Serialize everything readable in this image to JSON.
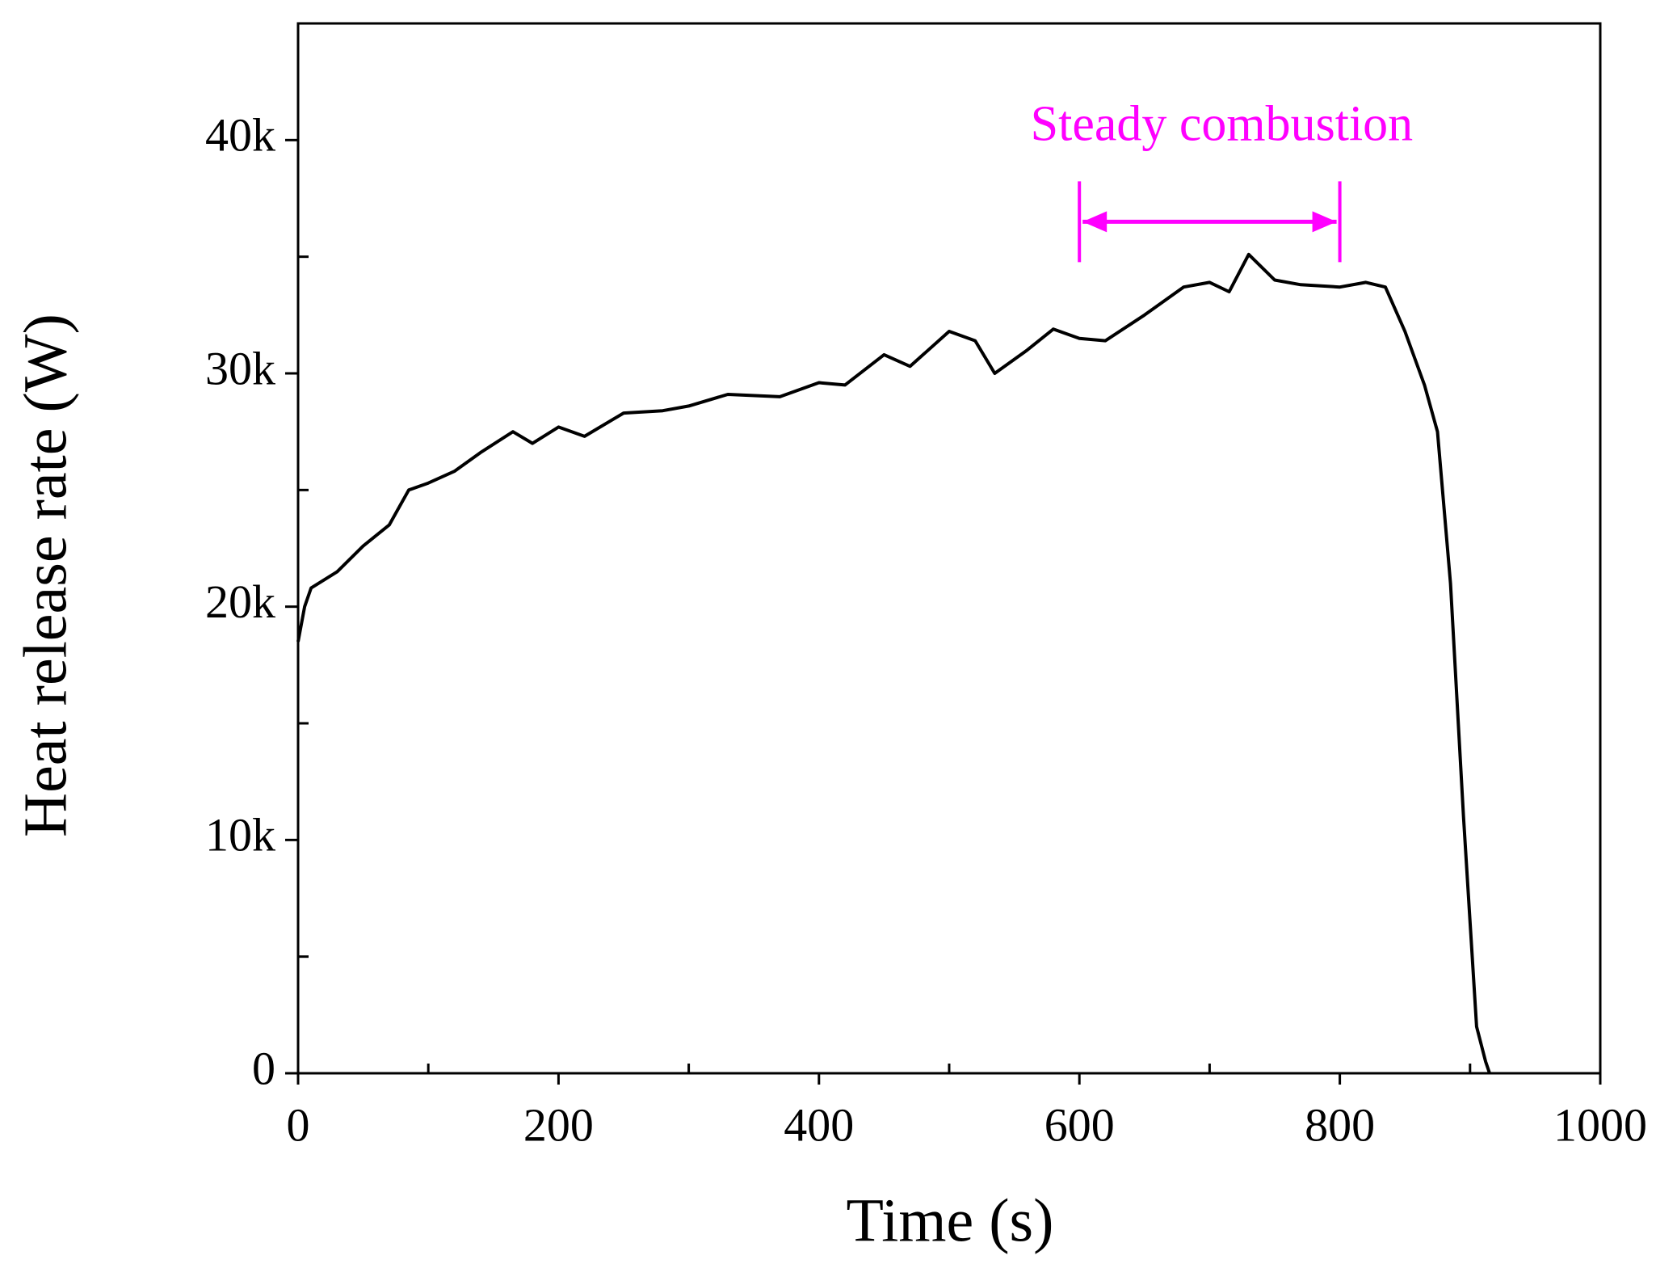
{
  "chart_data": {
    "type": "line",
    "xlabel": "Time (s)",
    "ylabel": "Heat release rate (W)",
    "x": [
      0,
      5,
      10,
      30,
      50,
      70,
      85,
      100,
      120,
      140,
      165,
      180,
      200,
      220,
      250,
      280,
      300,
      330,
      370,
      400,
      420,
      450,
      470,
      500,
      520,
      535,
      560,
      580,
      600,
      620,
      650,
      680,
      700,
      715,
      730,
      750,
      770,
      800,
      820,
      835,
      850,
      865,
      875,
      885,
      895,
      905,
      912,
      915
    ],
    "values": [
      18500,
      20000,
      20800,
      21500,
      22600,
      23500,
      25000,
      25300,
      25800,
      26600,
      27500,
      27000,
      27700,
      27300,
      28300,
      28400,
      28600,
      29100,
      29000,
      29600,
      29500,
      30800,
      30300,
      31800,
      31400,
      30000,
      31000,
      31900,
      31500,
      31400,
      32500,
      33700,
      33900,
      33500,
      35100,
      34000,
      33800,
      33700,
      33900,
      33700,
      31800,
      29500,
      27500,
      21000,
      11000,
      2000,
      500,
      0
    ],
    "color": "#000000",
    "xlim": [
      0,
      1000
    ],
    "xticks": [
      0,
      200,
      400,
      600,
      800,
      1000
    ],
    "xminorticks": [
      100,
      300,
      500,
      700,
      900
    ],
    "ylim": [
      0,
      45000
    ],
    "yticks": [
      0,
      {
        "value": 10000,
        "label": "10k"
      },
      {
        "value": 20000,
        "label": "20k"
      },
      {
        "value": 30000,
        "label": "30k"
      },
      {
        "value": 40000,
        "label": "40k"
      }
    ],
    "yminorticks": [
      5000,
      15000,
      25000,
      35000
    ],
    "annotation": {
      "text": "Steady combustion",
      "x": [
        600,
        800
      ],
      "y": 36500,
      "color": "#ff00ff"
    }
  }
}
